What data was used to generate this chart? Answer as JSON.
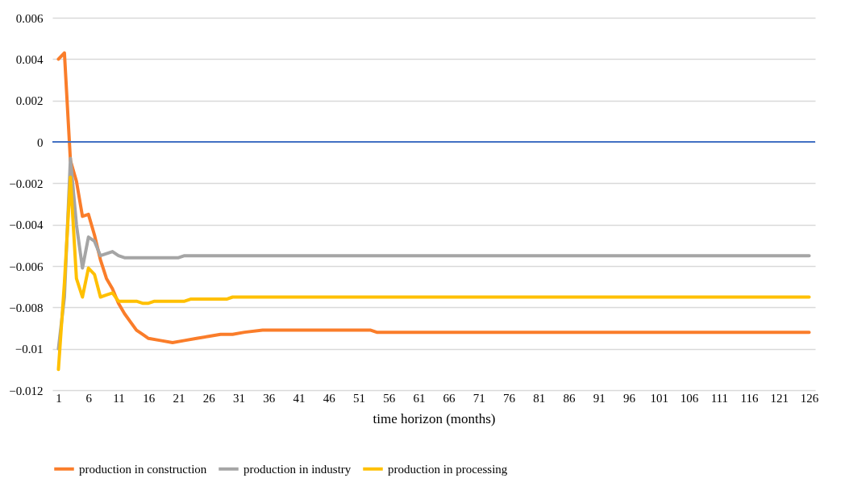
{
  "chart_data": {
    "type": "line",
    "xlabel": "time horizon (months)",
    "xlim": [
      0,
      127
    ],
    "xticks": [
      1,
      6,
      11,
      16,
      21,
      26,
      31,
      36,
      41,
      46,
      51,
      56,
      61,
      66,
      71,
      76,
      81,
      86,
      91,
      96,
      101,
      106,
      111,
      116,
      121,
      126
    ],
    "ylim": [
      -0.012,
      0.006
    ],
    "yticks": [
      -0.012,
      -0.01,
      -0.008,
      -0.006,
      -0.004,
      -0.002,
      0,
      0.002,
      0.004,
      0.006
    ],
    "grid": "y",
    "legend": "bottom",
    "line_style": "solid",
    "marker": "none",
    "ref_lines": [
      {
        "axis": "y",
        "value": 0,
        "color": "#4472c4"
      }
    ],
    "series": [
      {
        "name": "production in construction",
        "color": "#fa7d2a",
        "x": [
          1,
          2,
          3,
          4,
          5,
          6,
          7,
          8,
          9,
          10,
          11,
          12,
          13,
          14,
          15,
          16,
          18,
          20,
          22,
          24,
          26,
          28,
          30,
          32,
          35,
          53,
          54,
          126
        ],
        "values": [
          0.004,
          0.0043,
          -0.0009,
          -0.0019,
          -0.0036,
          -0.0035,
          -0.0045,
          -0.0057,
          -0.0066,
          -0.0071,
          -0.0078,
          -0.0083,
          -0.0087,
          -0.0091,
          -0.0093,
          -0.0095,
          -0.0096,
          -0.0097,
          -0.0096,
          -0.0095,
          -0.0094,
          -0.0093,
          -0.0093,
          -0.0092,
          -0.0091,
          -0.0091,
          -0.0092,
          -0.0092
        ]
      },
      {
        "name": "production in industry",
        "color": "#a5a5a5",
        "x": [
          1,
          2,
          3,
          4,
          5,
          6,
          7,
          8,
          9,
          10,
          11,
          12,
          21,
          22,
          126
        ],
        "values": [
          -0.01,
          -0.0075,
          -0.0008,
          -0.004,
          -0.0061,
          -0.0046,
          -0.0048,
          -0.0055,
          -0.0054,
          -0.0053,
          -0.0055,
          -0.0056,
          -0.0056,
          -0.0055,
          -0.0055
        ]
      },
      {
        "name": "production in processing",
        "color": "#ffc000",
        "x": [
          1,
          2,
          3,
          4,
          5,
          6,
          7,
          8,
          9,
          10,
          11,
          14,
          15,
          16,
          17,
          22,
          23,
          29,
          30,
          126
        ],
        "values": [
          -0.011,
          -0.0068,
          -0.0017,
          -0.0066,
          -0.0075,
          -0.0061,
          -0.0064,
          -0.0075,
          -0.0074,
          -0.0073,
          -0.0077,
          -0.0077,
          -0.0078,
          -0.0078,
          -0.0077,
          -0.0077,
          -0.0076,
          -0.0076,
          -0.0075,
          -0.0075
        ]
      }
    ]
  }
}
